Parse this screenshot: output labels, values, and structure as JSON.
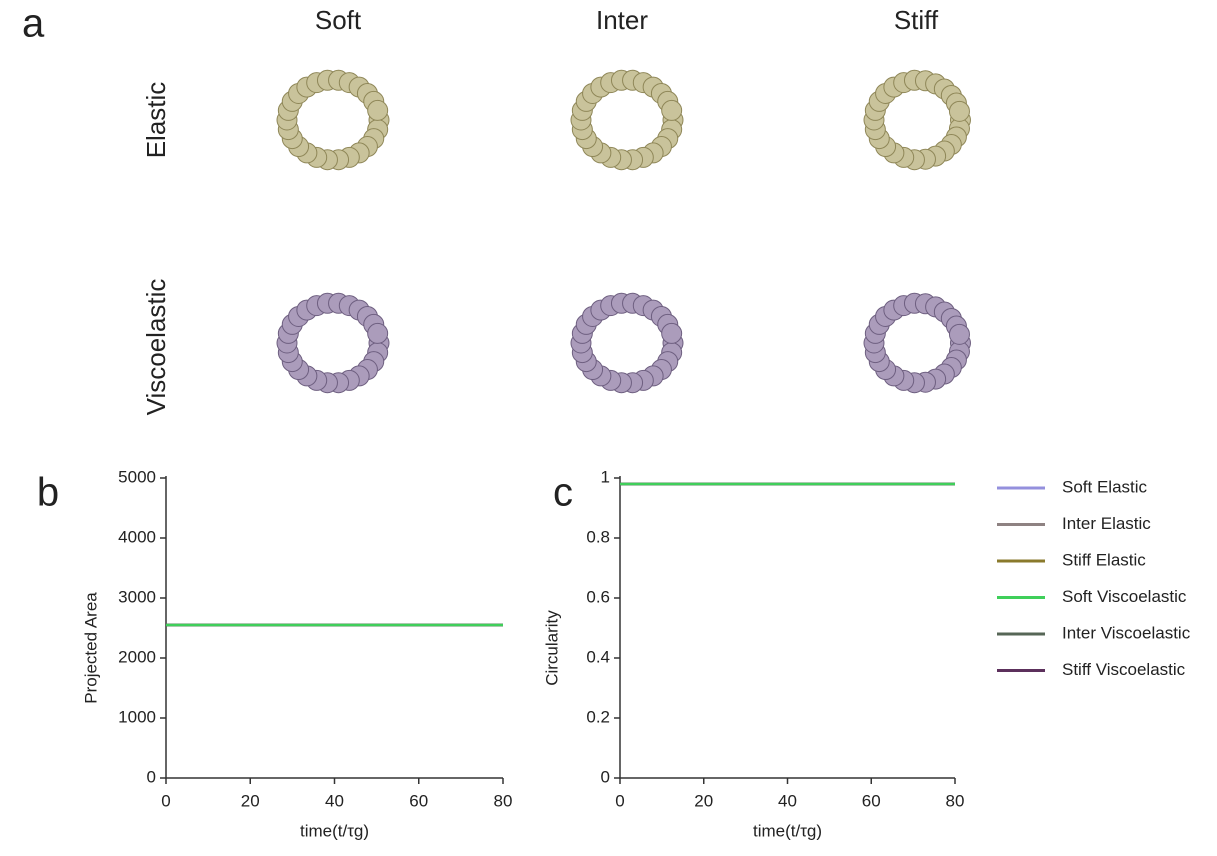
{
  "panel_a": {
    "label": "a",
    "columns": [
      "Soft",
      "Inter",
      "Stiff"
    ],
    "rows": [
      "Elastic",
      "Viscoelastic"
    ]
  },
  "chart_data": [
    {
      "type": "line",
      "panel_label": "b",
      "ylabel": "Projected Area",
      "xlabel": "time(t/τg)",
      "x": [
        0,
        10,
        20,
        30,
        40,
        50,
        60,
        70,
        80
      ],
      "xlim": [
        0,
        80
      ],
      "xticks": [
        0,
        20,
        40,
        60,
        80
      ],
      "ylim": [
        0,
        5000
      ],
      "yticks": [
        0,
        1000,
        2000,
        3000,
        4000,
        5000
      ],
      "legend": "right",
      "series": [
        {
          "name": "Soft Elastic",
          "color": "#9490dd",
          "values": [
            2550,
            2550,
            2550,
            2550,
            2550,
            2550,
            2550,
            2550,
            2550
          ]
        },
        {
          "name": "Inter Elastic",
          "color": "#8e8282",
          "values": [
            2550,
            2550,
            2550,
            2550,
            2550,
            2550,
            2550,
            2550,
            2550
          ]
        },
        {
          "name": "Stiff Elastic",
          "color": "#8a7a2c",
          "values": [
            2550,
            2550,
            2550,
            2550,
            2550,
            2550,
            2550,
            2550,
            2550
          ]
        },
        {
          "name": "Soft Viscoelastic",
          "color": "#3fcf5a",
          "values": [
            2550,
            2550,
            2550,
            2550,
            2550,
            2550,
            2550,
            2550,
            2550
          ]
        },
        {
          "name": "Inter Viscoelastic",
          "color": "#566656",
          "values": [
            2550,
            2550,
            2550,
            2550,
            2550,
            2550,
            2550,
            2550,
            2550
          ]
        },
        {
          "name": "Stiff Viscoelastic",
          "color": "#5c305c",
          "values": [
            2550,
            2550,
            2550,
            2550,
            2550,
            2550,
            2550,
            2550,
            2550
          ]
        }
      ]
    },
    {
      "type": "line",
      "panel_label": "c",
      "ylabel": "Circularity",
      "xlabel": "time(t/τg)",
      "x": [
        0,
        10,
        20,
        30,
        40,
        50,
        60,
        70,
        80
      ],
      "xlim": [
        0,
        80
      ],
      "xticks": [
        0,
        20,
        40,
        60,
        80
      ],
      "ylim": [
        0,
        1
      ],
      "yticks": [
        0,
        0.2,
        0.4,
        0.6,
        0.8,
        1
      ],
      "series": [
        {
          "color": "#9490dd",
          "values": [
            0.98,
            0.98,
            0.98,
            0.98,
            0.98,
            0.98,
            0.98,
            0.98,
            0.98
          ]
        },
        {
          "color": "#8e8282",
          "values": [
            0.98,
            0.98,
            0.98,
            0.98,
            0.98,
            0.98,
            0.98,
            0.98,
            0.98
          ]
        },
        {
          "color": "#8a7a2c",
          "values": [
            0.98,
            0.98,
            0.98,
            0.98,
            0.98,
            0.98,
            0.98,
            0.98,
            0.98
          ]
        },
        {
          "color": "#3fcf5a",
          "values": [
            0.98,
            0.98,
            0.98,
            0.98,
            0.98,
            0.98,
            0.98,
            0.98,
            0.98
          ]
        },
        {
          "color": "#566656",
          "values": [
            0.98,
            0.98,
            0.98,
            0.98,
            0.98,
            0.98,
            0.98,
            0.98,
            0.98
          ]
        },
        {
          "color": "#5c305c",
          "values": [
            0.98,
            0.98,
            0.98,
            0.98,
            0.98,
            0.98,
            0.98,
            0.98,
            0.98
          ]
        }
      ]
    }
  ]
}
